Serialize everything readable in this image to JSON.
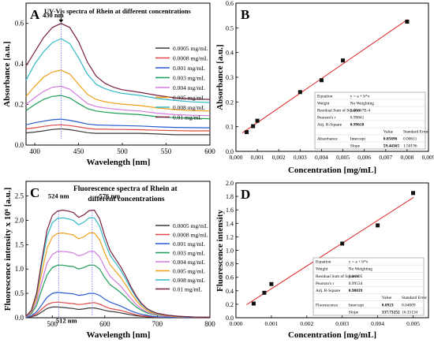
{
  "colors": [
    "#3a3a3a",
    "#e04848",
    "#2a5bd0",
    "#1f9e58",
    "#d47be0",
    "#f0a018",
    "#30b8c8",
    "#7a1f3d"
  ],
  "chart_data": [
    {
      "type": "line",
      "panel": "A",
      "title": "UV-Vis spectra of Rhein at different concentrations",
      "xlabel": "Wavelength [nm]",
      "ylabel": "Absorbance [a.u.]",
      "xlim": [
        390,
        600
      ],
      "ylim": [
        0.0,
        0.7
      ],
      "xticks": [
        "400",
        "450",
        "500",
        "550",
        "600"
      ],
      "yticks": [
        "0.0",
        "0.2",
        "0.4",
        "0.6"
      ],
      "annotations": [
        {
          "text": "430 nm",
          "x": 430,
          "y": 0.61
        }
      ],
      "legend_position": "right",
      "x": [
        390,
        400,
        410,
        420,
        430,
        440,
        450,
        460,
        470,
        480,
        490,
        500,
        520,
        540,
        560,
        580,
        600
      ],
      "series": [
        {
          "name": "0.0005 mg/mL",
          "values": [
            0.06,
            0.064,
            0.07,
            0.077,
            0.08,
            0.076,
            0.069,
            0.061,
            0.058,
            0.058,
            0.058,
            0.058,
            0.058,
            0.055,
            0.051,
            0.051,
            0.051
          ]
        },
        {
          "name": "0.0008 mg/mL",
          "values": [
            0.08,
            0.085,
            0.092,
            0.098,
            0.1,
            0.096,
            0.09,
            0.082,
            0.078,
            0.078,
            0.077,
            0.077,
            0.076,
            0.073,
            0.071,
            0.07,
            0.07
          ]
        },
        {
          "name": "0.001 mg/mL",
          "values": [
            0.1,
            0.11,
            0.118,
            0.125,
            0.128,
            0.122,
            0.113,
            0.104,
            0.099,
            0.098,
            0.097,
            0.096,
            0.094,
            0.09,
            0.087,
            0.086,
            0.085
          ]
        },
        {
          "name": "0.003 mg/mL",
          "values": [
            0.17,
            0.2,
            0.225,
            0.24,
            0.245,
            0.232,
            0.205,
            0.18,
            0.168,
            0.162,
            0.158,
            0.155,
            0.15,
            0.14,
            0.135,
            0.132,
            0.13
          ]
        },
        {
          "name": "0.004 mg/mL",
          "values": [
            0.2,
            0.235,
            0.265,
            0.285,
            0.29,
            0.275,
            0.24,
            0.205,
            0.19,
            0.183,
            0.178,
            0.174,
            0.168,
            0.157,
            0.15,
            0.147,
            0.145
          ]
        },
        {
          "name": "0.005 mg/mL",
          "values": [
            0.24,
            0.29,
            0.335,
            0.36,
            0.37,
            0.35,
            0.3,
            0.25,
            0.225,
            0.214,
            0.207,
            0.202,
            0.195,
            0.183,
            0.175,
            0.17,
            0.168
          ]
        },
        {
          "name": "0.008 mg/mL",
          "values": [
            0.32,
            0.4,
            0.46,
            0.505,
            0.525,
            0.5,
            0.43,
            0.35,
            0.3,
            0.278,
            0.265,
            0.255,
            0.245,
            0.23,
            0.22,
            0.213,
            0.21
          ]
        },
        {
          "name": "0.01 mg/mL",
          "values": [
            0.39,
            0.46,
            0.53,
            0.58,
            0.6,
            0.58,
            0.51,
            0.41,
            0.34,
            0.305,
            0.285,
            0.273,
            0.26,
            0.245,
            0.233,
            0.227,
            0.225
          ]
        }
      ]
    },
    {
      "type": "scatter",
      "panel": "B",
      "xlabel": "Concentration [mg/mL]",
      "ylabel": "Absorbance [a.u.]",
      "xlim": [
        0.0,
        0.009
      ],
      "ylim": [
        0.0,
        0.6
      ],
      "xticks": [
        "0,000",
        "0,001",
        "0,002",
        "0,003",
        "0,004",
        "0,005",
        "0,006",
        "0,007",
        "0,008",
        "0,009"
      ],
      "yticks": [
        "0.0",
        "0.1",
        "0.2",
        "0.3",
        "0.4",
        "0.5",
        "0.6"
      ],
      "points": {
        "x": [
          0.0005,
          0.0008,
          0.001,
          0.003,
          0.004,
          0.005,
          0.008
        ],
        "y": [
          0.078,
          0.102,
          0.124,
          0.24,
          0.288,
          0.368,
          0.525
        ]
      },
      "fit": {
        "intercept": 0.05696,
        "slope": 59.44365
      },
      "fit_table": [
        [
          "Equation",
          "y = a + b*x",
          "",
          ""
        ],
        [
          "Weight",
          "No Weighting",
          "",
          ""
        ],
        [
          "Residual Sum of Squares",
          "5.05867E-4",
          "",
          ""
        ],
        [
          "Pearson's r",
          "0.99841",
          "",
          ""
        ],
        [
          "Adj. R-Square",
          "0.99618",
          "",
          ""
        ],
        [
          "",
          "",
          "Value",
          "Standard Error"
        ],
        [
          "Absorbance",
          "Intercept",
          "0.05696",
          "0.00611"
        ],
        [
          "",
          "Slope",
          "59.44365",
          "1.50196"
        ]
      ]
    },
    {
      "type": "line",
      "panel": "C",
      "title": "Fluorescence spectra of Rhein at different concentrations",
      "xlabel": "Wavelength [nm]",
      "ylabel": "Fluorescence intensity x 10⁶ [a.u.]",
      "xlim": [
        450,
        800
      ],
      "ylim": [
        0.0,
        2.8
      ],
      "xticks": [
        "500",
        "600",
        "700",
        "800"
      ],
      "yticks": [
        "0.0",
        "0.5",
        "1.0",
        "1.5",
        "2.0",
        "2.5"
      ],
      "annotations": [
        {
          "text": "524 nm",
          "x": 524,
          "y": 2.45
        },
        {
          "text": "576 nm",
          "x": 576,
          "y": 2.45
        },
        {
          "text": "512 nm",
          "x": 512,
          "y": 0.06
        }
      ],
      "legend_position": "right",
      "x": [
        450,
        460,
        470,
        480,
        490,
        500,
        510,
        520,
        530,
        540,
        550,
        560,
        570,
        580,
        590,
        600,
        610,
        620,
        630,
        640,
        650,
        660,
        670,
        680,
        690,
        700,
        720,
        740,
        760,
        780,
        800
      ],
      "series": [
        {
          "name": "0.0005 mg/mL",
          "values": [
            0.01,
            0.02,
            0.05,
            0.12,
            0.19,
            0.22,
            0.22,
            0.21,
            0.2,
            0.19,
            0.17,
            0.18,
            0.2,
            0.2,
            0.18,
            0.15,
            0.13,
            0.12,
            0.1,
            0.08,
            0.06,
            0.04,
            0.03,
            0.02,
            0.015,
            0.01,
            0.01,
            0.01,
            0.01,
            0.01,
            0.01
          ]
        },
        {
          "name": "0.0008 mg/mL",
          "values": [
            0.01,
            0.03,
            0.08,
            0.18,
            0.27,
            0.31,
            0.32,
            0.31,
            0.3,
            0.29,
            0.27,
            0.28,
            0.3,
            0.31,
            0.28,
            0.23,
            0.19,
            0.17,
            0.15,
            0.12,
            0.09,
            0.06,
            0.04,
            0.03,
            0.02,
            0.015,
            0.01,
            0.01,
            0.01,
            0.01,
            0.01
          ]
        },
        {
          "name": "0.001 mg/mL",
          "values": [
            0.01,
            0.04,
            0.12,
            0.27,
            0.42,
            0.5,
            0.52,
            0.51,
            0.5,
            0.49,
            0.46,
            0.47,
            0.5,
            0.5,
            0.46,
            0.38,
            0.32,
            0.28,
            0.24,
            0.19,
            0.14,
            0.1,
            0.07,
            0.05,
            0.03,
            0.02,
            0.01,
            0.01,
            0.01,
            0.01,
            0.01
          ]
        },
        {
          "name": "0.003 mg/mL",
          "values": [
            0.02,
            0.08,
            0.25,
            0.58,
            0.88,
            1.03,
            1.08,
            1.08,
            1.06,
            1.05,
            1.0,
            1.03,
            1.08,
            1.08,
            1.0,
            0.82,
            0.68,
            0.6,
            0.52,
            0.42,
            0.31,
            0.22,
            0.15,
            0.1,
            0.07,
            0.05,
            0.03,
            0.02,
            0.02,
            0.01,
            0.01
          ]
        },
        {
          "name": "0.004 mg/mL",
          "values": [
            0.02,
            0.1,
            0.32,
            0.74,
            1.12,
            1.3,
            1.36,
            1.36,
            1.35,
            1.33,
            1.27,
            1.3,
            1.36,
            1.36,
            1.25,
            1.03,
            0.85,
            0.75,
            0.65,
            0.52,
            0.39,
            0.27,
            0.18,
            0.12,
            0.08,
            0.06,
            0.03,
            0.02,
            0.02,
            0.01,
            0.01
          ]
        },
        {
          "name": "0.005 mg/mL",
          "values": [
            0.03,
            0.12,
            0.4,
            0.93,
            1.42,
            1.66,
            1.73,
            1.74,
            1.72,
            1.7,
            1.62,
            1.66,
            1.74,
            1.74,
            1.6,
            1.32,
            1.09,
            0.96,
            0.83,
            0.67,
            0.5,
            0.35,
            0.23,
            0.15,
            0.1,
            0.07,
            0.04,
            0.02,
            0.02,
            0.01,
            0.01
          ]
        },
        {
          "name": "0.008 mg/mL",
          "values": [
            0.03,
            0.14,
            0.47,
            1.1,
            1.67,
            1.95,
            2.04,
            2.05,
            2.03,
            2.0,
            1.91,
            1.96,
            2.05,
            2.05,
            1.88,
            1.55,
            1.28,
            1.13,
            0.98,
            0.79,
            0.59,
            0.41,
            0.27,
            0.18,
            0.12,
            0.08,
            0.05,
            0.03,
            0.02,
            0.01,
            0.01
          ]
        },
        {
          "name": "0.01 mg/mL",
          "values": [
            0.03,
            0.15,
            0.5,
            1.18,
            1.8,
            2.1,
            2.19,
            2.21,
            2.19,
            2.16,
            2.06,
            2.11,
            2.2,
            2.21,
            2.03,
            1.67,
            1.38,
            1.21,
            1.05,
            0.85,
            0.63,
            0.44,
            0.29,
            0.19,
            0.13,
            0.09,
            0.05,
            0.03,
            0.02,
            0.01,
            0.01
          ]
        }
      ]
    },
    {
      "type": "scatter",
      "panel": "D",
      "xlabel": "Concentration [mg/mL]",
      "ylabel": "Fluorescence intensity",
      "xlim": [
        0.0,
        0.0053
      ],
      "ylim": [
        0.0,
        2.0
      ],
      "xticks": [
        "0.000",
        "0.001",
        "0.002",
        "0.003",
        "0.004",
        "0.005"
      ],
      "yticks": [
        "0.0",
        "0.2",
        "0.4",
        "0.6",
        "0.8",
        "1.0",
        "1.2",
        "1.4",
        "1.6",
        "1.8",
        "2.0"
      ],
      "points": {
        "x": [
          0.0005,
          0.0008,
          0.001,
          0.003,
          0.004,
          0.005
        ],
        "y": [
          0.21,
          0.37,
          0.5,
          1.1,
          1.37,
          1.85
        ]
      },
      "fit": {
        "intercept": 0.0923,
        "slope": 337.73252
      },
      "fit_table": [
        [
          "Equation",
          "y = a + b*x",
          "",
          ""
        ],
        [
          "Weight",
          "No Weighting",
          "",
          ""
        ],
        [
          "Residual Sum of Squares",
          "0.01905",
          "",
          ""
        ],
        [
          "Pearson's r",
          "0.99534",
          "",
          ""
        ],
        [
          "Adj. R-Square",
          "0.98839",
          "",
          ""
        ],
        [
          "",
          "",
          "Value",
          "Standard Error"
        ],
        [
          "Fluorescence",
          "Intercept",
          "0.0923",
          "0.04809"
        ],
        [
          "",
          "Slope",
          "337.73252",
          "16.33134"
        ]
      ]
    }
  ]
}
